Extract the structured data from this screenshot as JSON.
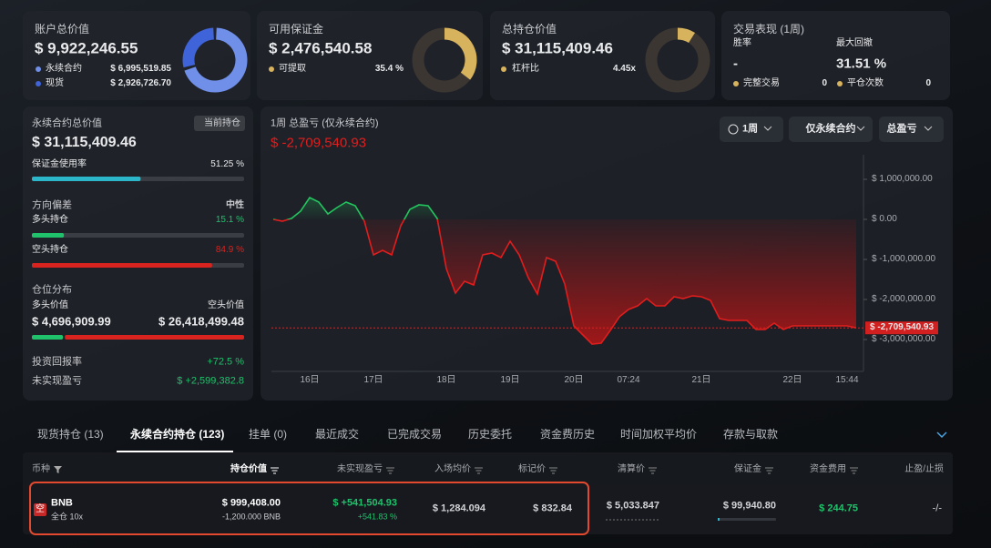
{
  "cards": [
    {
      "title": "账户总价值",
      "value": "$ 9,922,246.55",
      "donut": {
        "names": [
          "永续合约",
          "现货"
        ],
        "values": [
          6995519.85,
          2926726.7
        ],
        "value_labels": [
          "$ 6,995,519.85",
          "$ 2,926,726.70"
        ],
        "colors": [
          "#6f8fe9",
          "#3f63d9"
        ]
      }
    },
    {
      "title": "可用保证金",
      "value": "$ 2,476,540.58",
      "donut": {
        "names": [
          "可提取"
        ],
        "values": [
          35.4
        ],
        "value_labels": [
          "35.4 %"
        ],
        "colors": [
          "#d8b35e"
        ]
      }
    },
    {
      "title": "总持仓价值",
      "value": "$ 31,115,409.46",
      "item": {
        "name": "杠杆比",
        "value": "4.45x",
        "color": "#d8b35e"
      }
    },
    {
      "title": "交易表现 (1周)",
      "stats": [
        {
          "name": "胜率",
          "value": "-"
        },
        {
          "name": "最大回撤",
          "value": "31.51 %"
        }
      ],
      "counts": [
        {
          "name": "完整交易",
          "value": "0"
        },
        {
          "name": "平仓次数",
          "value": "0"
        }
      ],
      "color": "#d8b35e"
    }
  ],
  "perp_panel": {
    "title": "永续合约总价值",
    "badge": "当前持仓",
    "value": "$ 31,115,409.46",
    "margin_usage": {
      "label": "保证金使用率",
      "value": 51.25,
      "value_label": "51.25 %",
      "color": "#2bb7c9"
    },
    "direction": {
      "label": "方向偏差",
      "value": "中性",
      "long": {
        "label": "多头持仓",
        "value": 15.1,
        "value_label": "15.1 %",
        "color": "#1fc16b"
      },
      "short": {
        "label": "空头持仓",
        "value": 84.9,
        "value_label": "84.9 %",
        "color": "#d9231f"
      }
    },
    "distribution": {
      "label": "仓位分布",
      "long": {
        "label": "多头价值",
        "value": 4696909.99,
        "value_label": "$ 4,696,909.99",
        "color": "#1fc16b"
      },
      "short": {
        "label": "空头价值",
        "value": 26418499.48,
        "value_label": "$ 26,418,499.48",
        "color": "#d9231f"
      }
    },
    "roi": {
      "label": "投资回报率",
      "value": "+72.5 %"
    },
    "unrealized": {
      "label": "未实现盈亏",
      "value": "$ +2,599,382.8"
    }
  },
  "chart_controls": [
    "1周",
    "仅永续合约",
    "总盈亏"
  ],
  "chart_data": {
    "type": "line",
    "title": "1周 总盈亏 (仅永续合约)",
    "categories": [
      null,
      null,
      null,
      null,
      "16日",
      null,
      null,
      null,
      null,
      null,
      null,
      "17日",
      null,
      null,
      null,
      null,
      null,
      null,
      null,
      "18日",
      null,
      null,
      null,
      null,
      null,
      null,
      "19日",
      null,
      null,
      null,
      null,
      null,
      null,
      "20日",
      null,
      null,
      null,
      null,
      null,
      "07:24",
      null,
      null,
      null,
      null,
      null,
      null,
      null,
      "21日",
      null,
      null,
      null,
      null,
      null,
      null,
      null,
      null,
      null,
      "22日",
      null,
      null,
      null,
      null,
      null,
      "15:44",
      null
    ],
    "values": [
      0,
      -45000,
      23000,
      205000,
      545000,
      432000,
      136000,
      295000,
      432000,
      341000,
      -45000,
      -886000,
      -773000,
      -886000,
      -159000,
      250000,
      364000,
      341000,
      23000,
      -1227000,
      -1841000,
      -1545000,
      -1636000,
      -886000,
      -841000,
      -955000,
      -545000,
      -886000,
      -1455000,
      -1864000,
      -955000,
      -1045000,
      -1614000,
      -2659000,
      -2886000,
      -3114000,
      -3091000,
      -2773000,
      -2432000,
      -2250000,
      -2159000,
      -1977000,
      -2159000,
      -2159000,
      -1932000,
      -1977000,
      -1909000,
      -1932000,
      -2023000,
      -2477000,
      -2523000,
      -2523000,
      -2523000,
      -2750000,
      -2750000,
      -2591000,
      -2750000,
      -2659000,
      -2659000,
      -2659000,
      -2659000,
      -2659000,
      -2659000,
      -2659000,
      -2709540.93
    ],
    "value_labels": [
      null,
      null,
      null,
      null,
      null,
      null,
      null,
      null,
      null,
      null,
      null,
      null,
      null,
      null,
      null,
      null,
      null,
      null,
      null,
      null,
      null,
      null,
      null,
      null,
      null,
      null,
      null,
      null,
      null,
      null,
      null,
      null,
      null,
      null,
      null,
      null,
      null,
      null,
      null,
      null,
      null,
      null,
      null,
      null,
      null,
      null,
      null,
      null,
      null,
      null,
      null,
      null,
      null,
      null,
      null,
      null,
      null,
      null,
      null,
      null,
      null,
      null,
      null,
      null,
      "$ -2,709,540.93"
    ],
    "ylim": [
      -3700000,
      1600000
    ],
    "yticks": [
      {
        "value": 1000000,
        "label": "$ 1,000,000.00"
      },
      {
        "value": 0,
        "label": "$ 0.00"
      },
      {
        "value": -1000000,
        "label": "$ -1,000,000.00"
      },
      {
        "value": -2000000,
        "label": "$ -2,000,000.00"
      },
      {
        "value": -3000000,
        "label": "$ -3,000,000.00"
      }
    ],
    "colors": {
      "positive": "#22c55e",
      "negative": "#e11d1d"
    }
  },
  "tabs": {
    "items": [
      "现货持仓 (13)",
      "永续合约持仓 (123)",
      "挂单 (0)",
      "最近成交",
      "已完成交易",
      "历史委托",
      "资金费历史",
      "时间加权平均价",
      "存款与取款"
    ],
    "active": 1
  },
  "table": {
    "headers": [
      "币种",
      "持仓价值",
      "未实现盈亏",
      "入场均价",
      "标记价",
      "清算价",
      "保证金",
      "资金费用",
      "止盈/止损"
    ],
    "rows": [
      [
        "空",
        "BNB",
        "全仓 10x",
        "$ 999,408.00",
        "-1,200.000 BNB",
        "$ +541,504.93",
        "+541.83 %",
        "$ 1,284.094",
        "$ 832.84",
        "$ 5,033.847",
        "$ 99,940.80",
        "$ 244.75",
        "-/-"
      ]
    ]
  }
}
